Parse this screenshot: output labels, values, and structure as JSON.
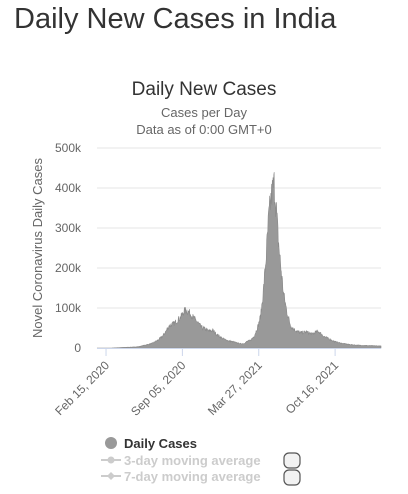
{
  "page": {
    "title": "Daily New Cases in India"
  },
  "chart_data": {
    "type": "area",
    "title": "Daily New Cases",
    "subtitle": "Cases per Day",
    "note": "Data as of 0:00 GMT+0",
    "ylabel": "Novel Coronavirus Daily Cases",
    "xlabel": "",
    "ylim": [
      0,
      500000
    ],
    "y_ticks": [
      0,
      100000,
      200000,
      300000,
      400000,
      500000
    ],
    "y_tick_labels": [
      "0",
      "100k",
      "200k",
      "300k",
      "400k",
      "500k"
    ],
    "x_range": [
      "2020-01-22",
      "2022-02-15"
    ],
    "x_ticks": [
      "2020-02-15",
      "2020-09-05",
      "2021-03-27",
      "2021-10-16"
    ],
    "x_tick_labels": [
      "Feb 15, 2020",
      "Sep 05, 2020",
      "Mar 27, 2021",
      "Oct 16, 2021"
    ],
    "grid": true,
    "legend_position": "bottom-left",
    "colors": {
      "daily": "#999999",
      "legend_off": "#cccccc",
      "grid": "#e6e6e6",
      "axis": "#ccd6eb"
    },
    "series": [
      {
        "name": "Daily Cases",
        "visible": true,
        "x": [
          "2020-01-22",
          "2020-03-01",
          "2020-04-01",
          "2020-05-01",
          "2020-05-15",
          "2020-06-01",
          "2020-06-15",
          "2020-07-01",
          "2020-07-15",
          "2020-08-01",
          "2020-08-15",
          "2020-09-01",
          "2020-09-10",
          "2020-09-16",
          "2020-09-25",
          "2020-10-05",
          "2020-10-15",
          "2020-10-25",
          "2020-11-05",
          "2020-11-15",
          "2020-11-25",
          "2020-12-05",
          "2020-12-20",
          "2021-01-05",
          "2021-01-20",
          "2021-02-05",
          "2021-02-15",
          "2021-02-25",
          "2021-03-05",
          "2021-03-15",
          "2021-03-25",
          "2021-04-01",
          "2021-04-08",
          "2021-04-15",
          "2021-04-22",
          "2021-04-28",
          "2021-05-03",
          "2021-05-07",
          "2021-05-12",
          "2021-05-18",
          "2021-05-25",
          "2021-06-01",
          "2021-06-10",
          "2021-06-20",
          "2021-07-01",
          "2021-07-15",
          "2021-08-01",
          "2021-08-15",
          "2021-09-01",
          "2021-09-15",
          "2021-10-01",
          "2021-10-15",
          "2021-11-01",
          "2021-11-15",
          "2021-12-01",
          "2021-12-15",
          "2022-01-01",
          "2022-01-15",
          "2022-02-01",
          "2022-02-15"
        ],
        "values": [
          0,
          10,
          1500,
          2500,
          4000,
          8000,
          11000,
          19000,
          30000,
          55000,
          62000,
          78000,
          92000,
          95000,
          87000,
          75000,
          65000,
          52000,
          47000,
          42000,
          44000,
          34000,
          24000,
          18000,
          15000,
          11000,
          11000,
          17000,
          19000,
          30000,
          55000,
          80000,
          140000,
          220000,
          320000,
          370000,
          395000,
          410000,
          355000,
          270000,
          200000,
          135000,
          90000,
          55000,
          45000,
          38000,
          40000,
          35000,
          42000,
          30000,
          22000,
          16000,
          12000,
          10000,
          8000,
          7000,
          6500,
          6000,
          5500,
          5000
        ]
      },
      {
        "name": "3-day moving average",
        "visible": false
      },
      {
        "name": "7-day moving average",
        "visible": false
      }
    ]
  }
}
